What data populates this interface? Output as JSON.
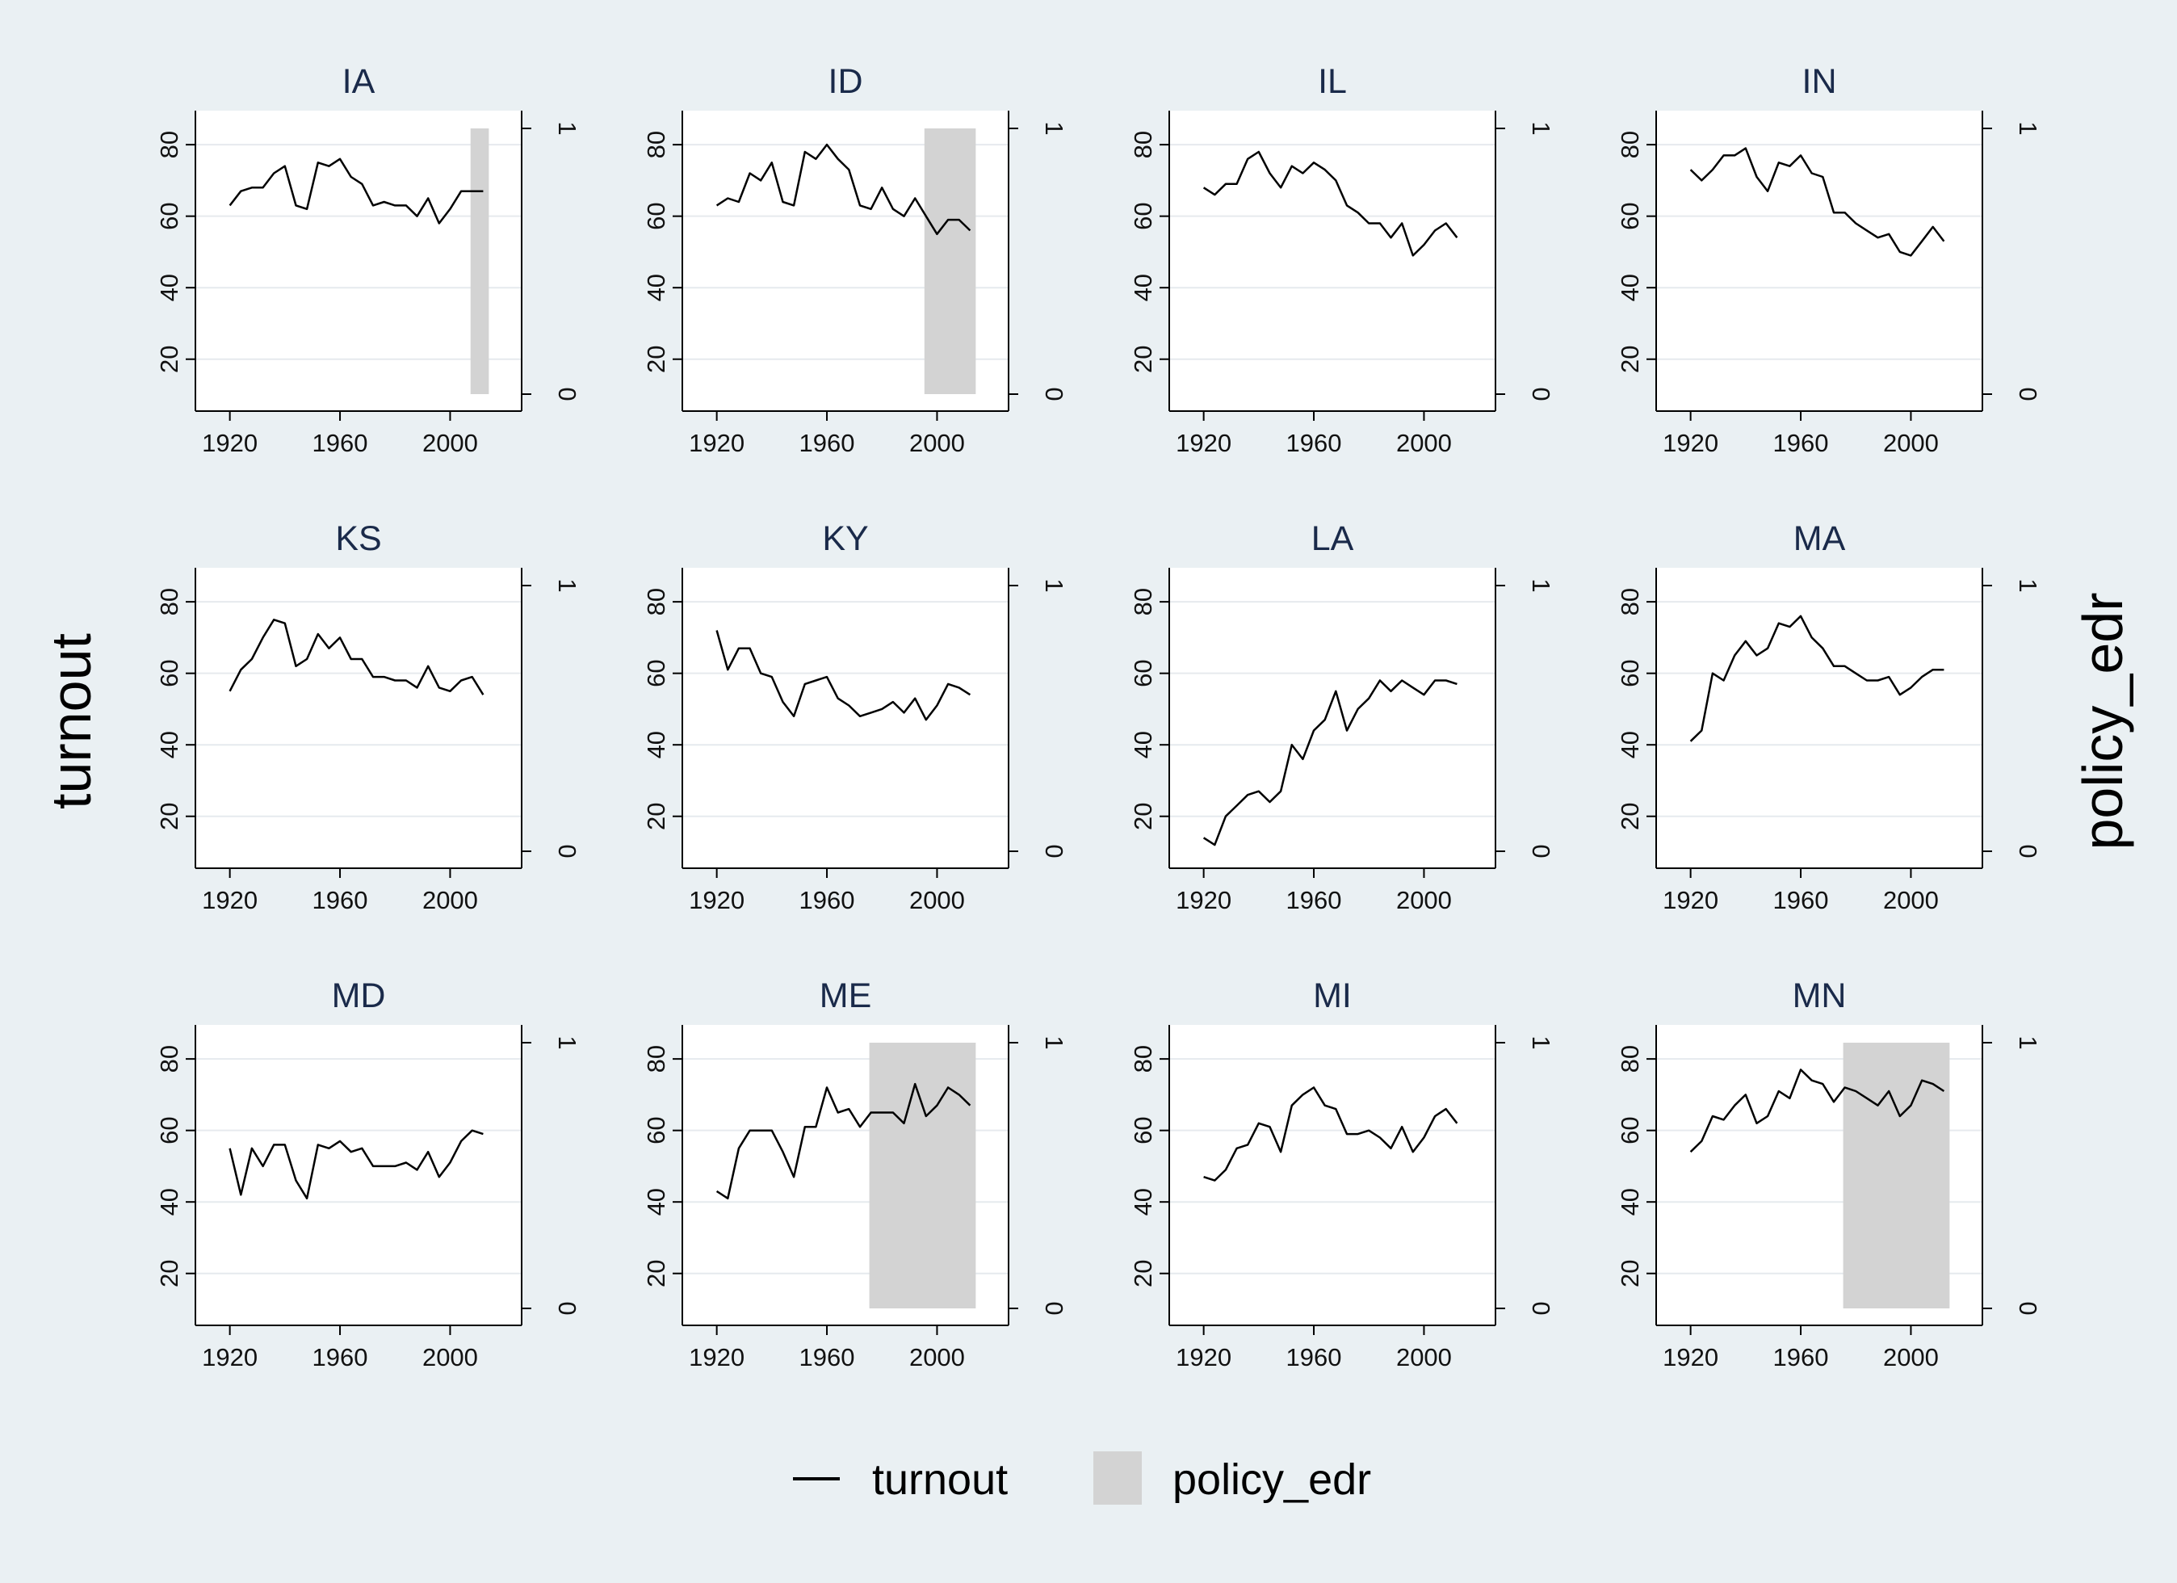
{
  "chart_data": {
    "type": "line",
    "layout": "small-multiples",
    "ylabel": "turnout",
    "y2label": "policy_edr",
    "ylim": [
      10,
      85
    ],
    "yticks": [
      20,
      40,
      60,
      80
    ],
    "y2lim": [
      0,
      1
    ],
    "y2ticks": [
      0,
      1
    ],
    "xlim": [
      1916,
      2016
    ],
    "xticks": [
      1920,
      1960,
      2000
    ],
    "colors": {
      "background": "#eaf0f3",
      "plot_bg": "#ffffff",
      "line": "#000000",
      "shade": "#d3d3d3",
      "grid": "#e6eaee",
      "title": "#1a2a4a"
    },
    "legend": {
      "position": "bottom",
      "items": [
        {
          "label": "turnout",
          "kind": "line"
        },
        {
          "label": "policy_edr",
          "kind": "area"
        }
      ]
    },
    "x": [
      1920,
      1924,
      1928,
      1932,
      1936,
      1940,
      1944,
      1948,
      1952,
      1956,
      1960,
      1964,
      1968,
      1972,
      1976,
      1980,
      1984,
      1988,
      1992,
      1996,
      2000,
      2004,
      2008,
      2012
    ],
    "panels": [
      {
        "state": "IA",
        "edr_range": [
          2008,
          2012
        ],
        "turnout": [
          63,
          67,
          68,
          68,
          72,
          74,
          63,
          62,
          75,
          74,
          76,
          71,
          69,
          63,
          64,
          63,
          63,
          60,
          65,
          58,
          62,
          67,
          67,
          67
        ]
      },
      {
        "state": "ID",
        "edr_range": [
          1996,
          2012
        ],
        "turnout": [
          63,
          65,
          64,
          72,
          70,
          75,
          64,
          63,
          78,
          76,
          80,
          76,
          73,
          63,
          62,
          68,
          62,
          60,
          65,
          60,
          55,
          59,
          59,
          56
        ]
      },
      {
        "state": "IL",
        "edr_range": null,
        "turnout": [
          68,
          66,
          69,
          69,
          76,
          78,
          72,
          68,
          74,
          72,
          75,
          73,
          70,
          63,
          61,
          58,
          58,
          54,
          58,
          49,
          52,
          56,
          58,
          54
        ]
      },
      {
        "state": "IN",
        "edr_range": null,
        "turnout": [
          73,
          70,
          73,
          77,
          77,
          79,
          71,
          67,
          75,
          74,
          77,
          72,
          71,
          61,
          61,
          58,
          56,
          54,
          55,
          50,
          49,
          53,
          57,
          53
        ]
      },
      {
        "state": "KS",
        "edr_range": null,
        "turnout": [
          55,
          61,
          64,
          70,
          75,
          74,
          62,
          64,
          71,
          67,
          70,
          64,
          64,
          59,
          59,
          58,
          58,
          56,
          62,
          56,
          55,
          58,
          59,
          54
        ]
      },
      {
        "state": "KY",
        "edr_range": null,
        "turnout": [
          72,
          61,
          67,
          67,
          60,
          59,
          52,
          48,
          57,
          58,
          59,
          53,
          51,
          48,
          49,
          50,
          52,
          49,
          53,
          47,
          51,
          57,
          56,
          54
        ]
      },
      {
        "state": "LA",
        "edr_range": null,
        "turnout": [
          14,
          12,
          20,
          23,
          26,
          27,
          24,
          27,
          40,
          36,
          44,
          47,
          55,
          44,
          50,
          53,
          58,
          55,
          58,
          56,
          54,
          58,
          58,
          57
        ]
      },
      {
        "state": "MA",
        "edr_range": null,
        "turnout": [
          41,
          44,
          60,
          58,
          65,
          69,
          65,
          67,
          74,
          73,
          76,
          70,
          67,
          62,
          62,
          60,
          58,
          58,
          59,
          54,
          56,
          59,
          61,
          61
        ]
      },
      {
        "state": "MD",
        "edr_range": null,
        "turnout": [
          55,
          42,
          55,
          50,
          56,
          56,
          46,
          41,
          56,
          55,
          57,
          54,
          55,
          50,
          50,
          50,
          51,
          49,
          54,
          47,
          51,
          57,
          60,
          59
        ]
      },
      {
        "state": "ME",
        "edr_range": [
          1976,
          2012
        ],
        "turnout": [
          43,
          41,
          55,
          60,
          60,
          60,
          54,
          47,
          61,
          61,
          72,
          65,
          66,
          61,
          65,
          65,
          65,
          62,
          73,
          64,
          67,
          72,
          70,
          67
        ]
      },
      {
        "state": "MI",
        "edr_range": null,
        "turnout": [
          47,
          46,
          49,
          55,
          56,
          62,
          61,
          54,
          67,
          70,
          72,
          67,
          66,
          59,
          59,
          60,
          58,
          55,
          61,
          54,
          58,
          64,
          66,
          62
        ]
      },
      {
        "state": "MN",
        "edr_range": [
          1976,
          2012
        ],
        "turnout": [
          54,
          57,
          64,
          63,
          67,
          70,
          62,
          64,
          71,
          69,
          77,
          74,
          73,
          68,
          72,
          71,
          69,
          67,
          71,
          64,
          67,
          74,
          73,
          71
        ]
      }
    ]
  }
}
